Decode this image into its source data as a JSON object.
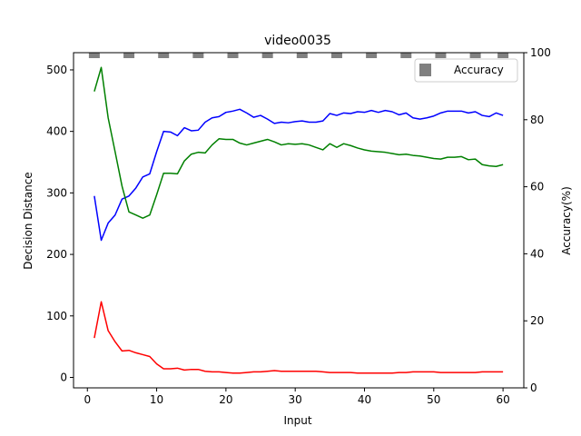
{
  "chart_data": {
    "type": "line",
    "title": "video0035",
    "xlabel": "Input",
    "ylabel": "Decision Distance",
    "y2label": "Accuracy(%)",
    "xlim": [
      -2,
      63
    ],
    "ylim": [
      -17,
      528
    ],
    "y2lim": [
      0,
      100
    ],
    "xticks": [
      0,
      10,
      20,
      30,
      40,
      50,
      60
    ],
    "yticks": [
      0,
      100,
      200,
      300,
      400,
      500
    ],
    "y2ticks": [
      0,
      20,
      40,
      60,
      80,
      100
    ],
    "x": [
      1,
      2,
      3,
      4,
      5,
      6,
      7,
      8,
      9,
      10,
      11,
      12,
      13,
      14,
      15,
      16,
      17,
      18,
      19,
      20,
      21,
      22,
      23,
      24,
      25,
      26,
      27,
      28,
      29,
      30,
      31,
      32,
      33,
      34,
      35,
      36,
      37,
      38,
      39,
      40,
      41,
      42,
      43,
      44,
      45,
      46,
      47,
      48,
      49,
      50,
      51,
      52,
      53,
      54,
      55,
      56,
      57,
      58,
      59,
      60
    ],
    "series": [
      {
        "color": "#0000ff",
        "values": [
          295,
          223,
          251,
          264,
          290,
          295,
          308,
          326,
          331,
          367,
          400,
          399,
          393,
          406,
          401,
          402,
          415,
          422,
          424,
          431,
          433,
          436,
          430,
          423,
          426,
          420,
          413,
          415,
          414,
          416,
          417,
          415,
          415,
          417,
          429,
          426,
          430,
          429,
          432,
          431,
          434,
          431,
          434,
          432,
          427,
          430,
          422,
          420,
          422,
          425,
          430,
          433,
          433,
          433,
          430,
          432,
          426,
          424,
          430,
          426
        ]
      },
      {
        "color": "#008000",
        "values": [
          465,
          504,
          422,
          367,
          311,
          269,
          264,
          259,
          264,
          297,
          332,
          332,
          331,
          352,
          363,
          366,
          365,
          378,
          388,
          387,
          387,
          381,
          378,
          381,
          384,
          387,
          383,
          378,
          380,
          379,
          380,
          378,
          374,
          370,
          380,
          374,
          380,
          377,
          373,
          370,
          368,
          367,
          366,
          364,
          362,
          363,
          361,
          360,
          358,
          356,
          355,
          358,
          358,
          359,
          354,
          355,
          346,
          344,
          343,
          346
        ]
      },
      {
        "color": "#ff0000",
        "values": [
          64,
          123,
          76,
          58,
          43,
          44,
          40,
          37,
          34,
          22,
          14,
          14,
          15,
          12,
          13,
          13,
          10,
          9,
          9,
          8,
          7,
          7,
          8,
          9,
          9,
          10,
          11,
          10,
          10,
          10,
          10,
          10,
          10,
          9,
          8,
          8,
          8,
          8,
          7,
          7,
          7,
          7,
          7,
          7,
          8,
          8,
          9,
          9,
          9,
          9,
          8,
          8,
          8,
          8,
          8,
          8,
          9,
          9,
          9,
          9
        ]
      }
    ],
    "accuracy": {
      "name": "Accuracy",
      "color": "#808080",
      "x": [
        1,
        6,
        11,
        16,
        21,
        26,
        31,
        36,
        41,
        46,
        51,
        56,
        60
      ],
      "values": [
        100,
        100,
        100,
        100,
        100,
        100,
        100,
        100,
        100,
        100,
        100,
        100,
        100
      ]
    },
    "legend": "top-right",
    "grid": false
  }
}
